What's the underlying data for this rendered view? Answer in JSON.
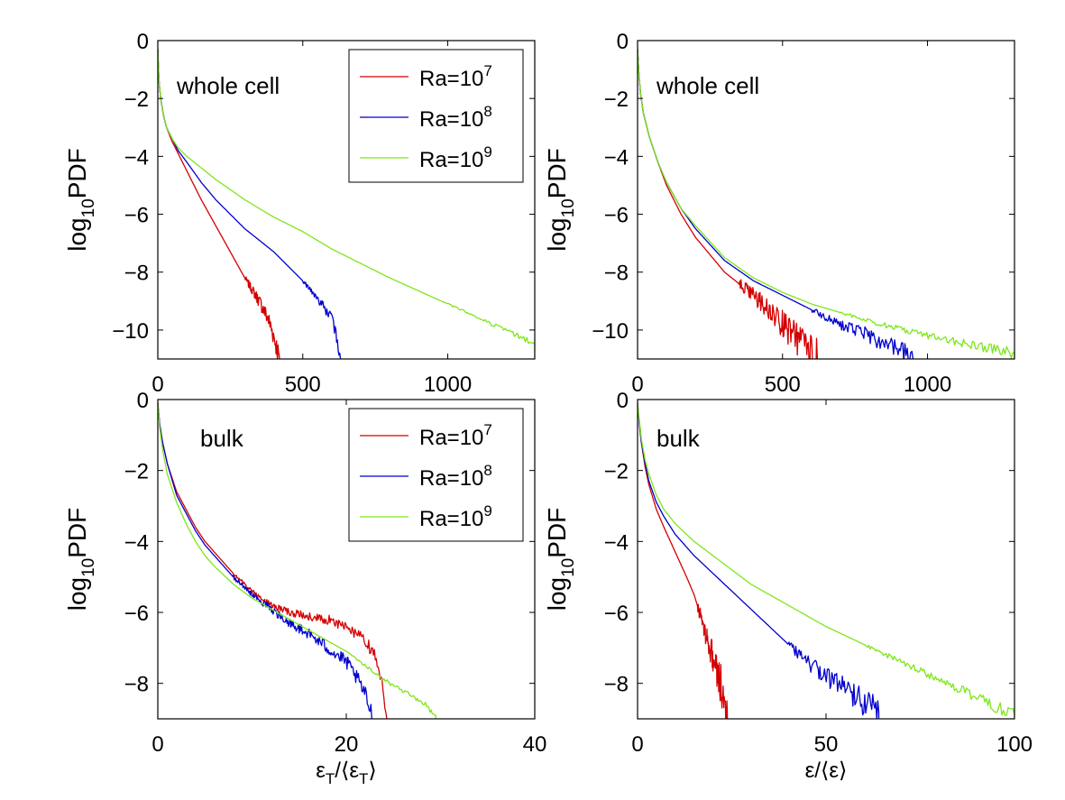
{
  "chart_data": [
    {
      "type": "line",
      "panel": "top-left",
      "annotation": "whole cell",
      "ylabel": "log",
      "ylabel_sub": "10",
      "ylabel_tail": "PDF",
      "xlim": [
        0,
        1300
      ],
      "ylim": [
        -11,
        0
      ],
      "xticks": [
        0,
        500,
        1000
      ],
      "xtick_labels": [
        "0",
        "500",
        "1000"
      ],
      "yticks": [
        0,
        -2,
        -4,
        -6,
        -8,
        -10
      ],
      "ytick_labels": [
        "0",
        "−2",
        "−4",
        "−6",
        "−8",
        "−10"
      ],
      "legend": {
        "placement": "top-right",
        "entries": [
          {
            "base": "Ra=10",
            "exp": "7"
          },
          {
            "base": "Ra=10",
            "exp": "8"
          },
          {
            "base": "Ra=10",
            "exp": "9"
          }
        ]
      },
      "series": [
        {
          "name": "Ra=10^7",
          "color": "#d40000",
          "noise": 0.25,
          "noise_from": 300,
          "x": [
            0,
            2,
            5,
            10,
            20,
            30,
            50,
            70,
            100,
            150,
            200,
            250,
            300,
            350,
            380,
            400,
            415,
            420
          ],
          "y": [
            -0.3,
            -0.9,
            -1.5,
            -2.0,
            -2.6,
            -3.0,
            -3.5,
            -3.9,
            -4.5,
            -5.5,
            -6.4,
            -7.3,
            -8.2,
            -9.0,
            -9.6,
            -10.2,
            -10.8,
            -11.0
          ]
        },
        {
          "name": "Ra=10^8",
          "color": "#0000cc",
          "noise": 0.15,
          "noise_from": 500,
          "x": [
            0,
            2,
            5,
            10,
            20,
            30,
            50,
            70,
            100,
            150,
            200,
            300,
            400,
            500,
            550,
            600,
            620,
            630
          ],
          "y": [
            -0.3,
            -0.9,
            -1.5,
            -2.0,
            -2.6,
            -3.0,
            -3.4,
            -3.8,
            -4.2,
            -4.9,
            -5.5,
            -6.5,
            -7.3,
            -8.3,
            -8.9,
            -9.6,
            -10.4,
            -11.0
          ]
        },
        {
          "name": "Ra=10^9",
          "color": "#7ee61a",
          "noise": 0.07,
          "noise_from": 1000,
          "x": [
            0,
            2,
            5,
            10,
            20,
            30,
            50,
            70,
            100,
            150,
            200,
            300,
            400,
            500,
            600,
            800,
            1000,
            1200,
            1300
          ],
          "y": [
            -0.3,
            -0.9,
            -1.5,
            -2.0,
            -2.6,
            -3.0,
            -3.4,
            -3.7,
            -4.0,
            -4.4,
            -4.8,
            -5.5,
            -6.1,
            -6.6,
            -7.2,
            -8.2,
            -9.1,
            -10.0,
            -10.5
          ]
        }
      ]
    },
    {
      "type": "line",
      "panel": "top-right",
      "annotation": "whole cell",
      "ylabel": "log",
      "ylabel_sub": "10",
      "ylabel_tail": "PDF",
      "xlim": [
        0,
        1300
      ],
      "ylim": [
        -11,
        0
      ],
      "xticks": [
        0,
        500,
        1000
      ],
      "xtick_labels": [
        "0",
        "500",
        "1000"
      ],
      "yticks": [
        0,
        -2,
        -4,
        -6,
        -8,
        -10
      ],
      "ytick_labels": [
        "0",
        "−2",
        "−4",
        "−6",
        "−8",
        "−10"
      ],
      "series": [
        {
          "name": "Ra=10^7",
          "color": "#d40000",
          "noise": 0.45,
          "noise_from": 350,
          "x": [
            0,
            5,
            10,
            20,
            40,
            70,
            100,
            150,
            200,
            300,
            400,
            450,
            500,
            550,
            600,
            620
          ],
          "y": [
            -0.3,
            -1.2,
            -1.8,
            -2.5,
            -3.3,
            -4.2,
            -5.0,
            -6.0,
            -6.8,
            -8.0,
            -8.8,
            -9.3,
            -9.8,
            -10.3,
            -10.7,
            -11.0
          ]
        },
        {
          "name": "Ra=10^8",
          "color": "#0000cc",
          "noise": 0.25,
          "noise_from": 600,
          "x": [
            0,
            5,
            10,
            20,
            40,
            70,
            100,
            150,
            200,
            300,
            400,
            500,
            600,
            700,
            800,
            900,
            950
          ],
          "y": [
            -0.3,
            -1.2,
            -1.8,
            -2.5,
            -3.3,
            -4.2,
            -4.9,
            -5.8,
            -6.5,
            -7.6,
            -8.3,
            -8.8,
            -9.3,
            -9.8,
            -10.2,
            -10.7,
            -11.0
          ]
        },
        {
          "name": "Ra=10^9",
          "color": "#7ee61a",
          "noise": 0.12,
          "noise_from": 700,
          "x": [
            0,
            5,
            10,
            20,
            40,
            70,
            100,
            150,
            200,
            300,
            400,
            500,
            600,
            800,
            1000,
            1200,
            1300
          ],
          "y": [
            -0.3,
            -1.2,
            -1.8,
            -2.5,
            -3.3,
            -4.2,
            -4.9,
            -5.8,
            -6.4,
            -7.5,
            -8.2,
            -8.7,
            -9.1,
            -9.7,
            -10.2,
            -10.6,
            -10.8
          ]
        }
      ]
    },
    {
      "type": "line",
      "panel": "bottom-left",
      "annotation": "bulk",
      "ylabel": "log",
      "ylabel_sub": "10",
      "ylabel_tail": "PDF",
      "xlabel": "ε",
      "xlabel_sub": "T",
      "xlabel_mid": "/⟨ε",
      "xlabel_sub2": "T",
      "xlabel_tail": "⟩",
      "xlim": [
        0,
        40
      ],
      "ylim": [
        -9,
        0
      ],
      "xticks": [
        0,
        20,
        40
      ],
      "xtick_labels": [
        "0",
        "20",
        "40"
      ],
      "yticks": [
        0,
        -2,
        -4,
        -6,
        -8
      ],
      "ytick_labels": [
        "0",
        "−2",
        "−4",
        "−6",
        "−8"
      ],
      "legend": {
        "placement": "top-right",
        "entries": [
          {
            "base": "Ra=10",
            "exp": "7"
          },
          {
            "base": "Ra=10",
            "exp": "8"
          },
          {
            "base": "Ra=10",
            "exp": "9"
          }
        ]
      },
      "series": [
        {
          "name": "Ra=10^7",
          "color": "#d40000",
          "noise": 0.12,
          "noise_from": 8,
          "x": [
            0,
            0.2,
            0.5,
            1,
            2,
            3,
            4,
            5,
            6,
            8,
            10,
            12,
            14,
            16,
            18,
            19,
            20,
            21,
            22,
            23,
            23.5,
            24,
            24.3
          ],
          "y": [
            -0.1,
            -0.7,
            -1.2,
            -1.8,
            -2.6,
            -3.1,
            -3.6,
            -4.0,
            -4.3,
            -4.9,
            -5.4,
            -5.8,
            -6.0,
            -6.1,
            -6.2,
            -6.3,
            -6.4,
            -6.6,
            -6.8,
            -7.2,
            -7.7,
            -8.3,
            -9.0
          ]
        },
        {
          "name": "Ra=10^8",
          "color": "#0000cc",
          "noise": 0.15,
          "noise_from": 8,
          "x": [
            0,
            0.2,
            0.5,
            1,
            2,
            3,
            4,
            5,
            6,
            8,
            10,
            12,
            14,
            16,
            18,
            20,
            21,
            22,
            22.5,
            23
          ],
          "y": [
            -0.1,
            -0.7,
            -1.2,
            -1.8,
            -2.7,
            -3.2,
            -3.7,
            -4.1,
            -4.4,
            -5.0,
            -5.5,
            -5.9,
            -6.3,
            -6.6,
            -7.0,
            -7.4,
            -7.8,
            -8.3,
            -8.7,
            -9.0
          ]
        },
        {
          "name": "Ra=10^9",
          "color": "#7ee61a",
          "noise": 0.06,
          "noise_from": 20,
          "x": [
            0,
            0.2,
            0.5,
            1,
            2,
            3,
            4,
            5,
            6,
            8,
            10,
            12,
            14,
            16,
            18,
            20,
            22,
            24,
            26,
            28,
            29.5
          ],
          "y": [
            -0.1,
            -0.8,
            -1.4,
            -2.1,
            -2.9,
            -3.5,
            -4.0,
            -4.4,
            -4.7,
            -5.2,
            -5.6,
            -5.9,
            -6.2,
            -6.5,
            -6.8,
            -7.1,
            -7.5,
            -7.9,
            -8.2,
            -8.5,
            -8.9
          ]
        }
      ]
    },
    {
      "type": "line",
      "panel": "bottom-right",
      "annotation": "bulk",
      "ylabel": "log",
      "ylabel_sub": "10",
      "ylabel_tail": "PDF",
      "xlabel": "ε/⟨ε⟩",
      "xlim": [
        0,
        100
      ],
      "ylim": [
        -9,
        0
      ],
      "xticks": [
        0,
        50,
        100
      ],
      "xtick_labels": [
        "0",
        "50",
        "100"
      ],
      "yticks": [
        0,
        -2,
        -4,
        -6,
        -8
      ],
      "ytick_labels": [
        "0",
        "−2",
        "−4",
        "−6",
        "−8"
      ],
      "series": [
        {
          "name": "Ra=10^7",
          "color": "#d40000",
          "noise": 0.45,
          "noise_from": 16,
          "x": [
            0,
            0.5,
            1,
            2,
            3,
            5,
            7,
            10,
            13,
            15,
            17,
            19,
            20,
            21,
            22,
            23,
            24
          ],
          "y": [
            -0.1,
            -0.7,
            -1.2,
            -1.9,
            -2.4,
            -3.1,
            -3.6,
            -4.3,
            -5.0,
            -5.5,
            -6.2,
            -6.9,
            -7.3,
            -7.7,
            -8.0,
            -8.5,
            -9.0
          ]
        },
        {
          "name": "Ra=10^8",
          "color": "#0000cc",
          "noise": 0.3,
          "noise_from": 40,
          "x": [
            0,
            0.5,
            1,
            2,
            3,
            5,
            7,
            10,
            15,
            20,
            25,
            30,
            35,
            40,
            45,
            50,
            55,
            60,
            64
          ],
          "y": [
            -0.1,
            -0.7,
            -1.2,
            -1.8,
            -2.3,
            -2.9,
            -3.3,
            -3.8,
            -4.4,
            -4.9,
            -5.4,
            -5.9,
            -6.4,
            -6.9,
            -7.4,
            -7.8,
            -8.1,
            -8.5,
            -8.8
          ]
        },
        {
          "name": "Ra=10^9",
          "color": "#7ee61a",
          "noise": 0.12,
          "noise_from": 60,
          "x": [
            0,
            0.5,
            1,
            2,
            3,
            5,
            7,
            10,
            15,
            20,
            25,
            30,
            40,
            50,
            60,
            70,
            80,
            90,
            100
          ],
          "y": [
            -0.1,
            -0.6,
            -1.1,
            -1.7,
            -2.1,
            -2.7,
            -3.1,
            -3.5,
            -4.0,
            -4.4,
            -4.8,
            -5.2,
            -5.8,
            -6.4,
            -6.9,
            -7.4,
            -7.9,
            -8.4,
            -8.9
          ]
        }
      ]
    }
  ]
}
